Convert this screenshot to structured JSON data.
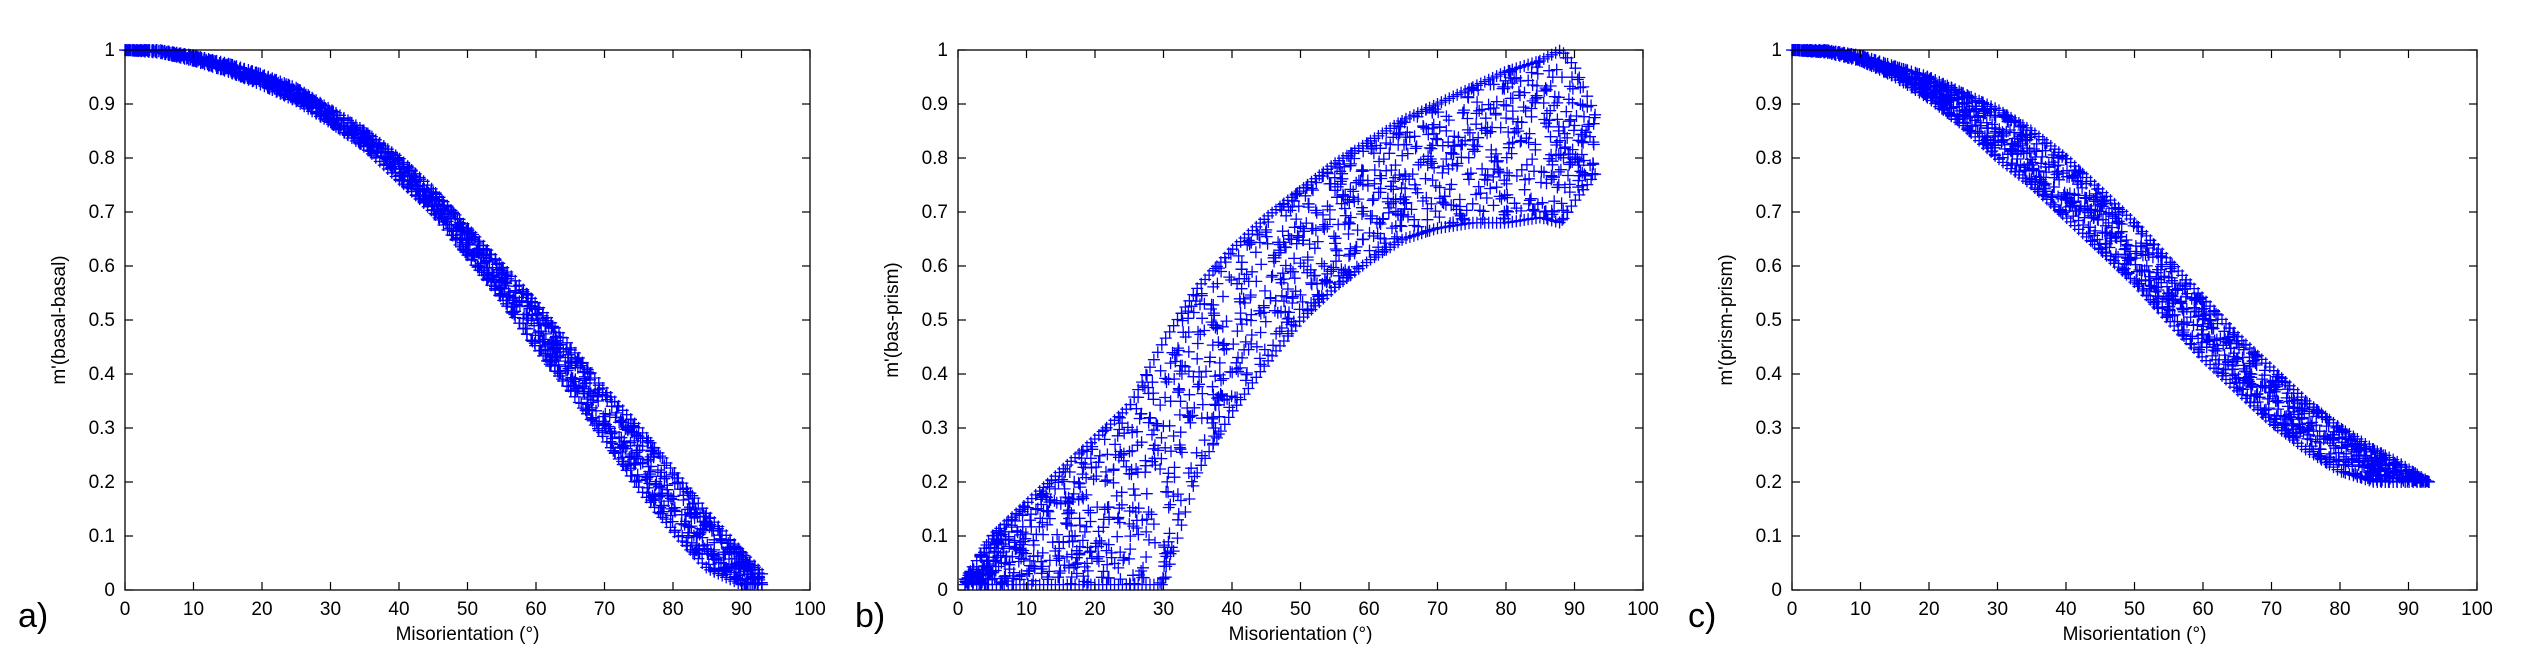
{
  "panel_labels": [
    "a)",
    "b)",
    "c)"
  ],
  "colors": {
    "marker": "#0000ff",
    "axis": "#000000",
    "background": "#ffffff"
  },
  "chart_data": [
    {
      "type": "scatter",
      "marker": "+",
      "title": "",
      "xlabel": "Misorientation (°)",
      "ylabel": "m'(basal-basal)",
      "xlim": [
        0,
        100
      ],
      "ylim": [
        0,
        1
      ],
      "xticks": [
        "0",
        "10",
        "20",
        "30",
        "40",
        "50",
        "60",
        "70",
        "80",
        "90",
        "100"
      ],
      "yticks": [
        "0",
        "0.1",
        "0.2",
        "0.3",
        "0.4",
        "0.5",
        "0.6",
        "0.7",
        "0.8",
        "0.9",
        "1"
      ],
      "grid": false,
      "data_extent": {
        "x": [
          0,
          5,
          10,
          15,
          20,
          25,
          30,
          35,
          40,
          45,
          50,
          55,
          60,
          65,
          70,
          75,
          80,
          85,
          90,
          93
        ],
        "y_upper": [
          1,
          1,
          0.99,
          0.975,
          0.955,
          0.93,
          0.89,
          0.85,
          0.8,
          0.74,
          0.67,
          0.6,
          0.53,
          0.45,
          0.37,
          0.3,
          0.22,
          0.14,
          0.07,
          0.03
        ],
        "y_lower": [
          1,
          0.995,
          0.98,
          0.96,
          0.935,
          0.905,
          0.865,
          0.82,
          0.76,
          0.7,
          0.62,
          0.54,
          0.45,
          0.37,
          0.28,
          0.19,
          0.11,
          0.04,
          0.01,
          0.01
        ]
      }
    },
    {
      "type": "scatter",
      "marker": "+",
      "title": "",
      "xlabel": "Misorientation (°)",
      "ylabel": "m'(bas-prism)",
      "xlim": [
        0,
        100
      ],
      "ylim": [
        0,
        1
      ],
      "xticks": [
        "0",
        "10",
        "20",
        "30",
        "40",
        "50",
        "60",
        "70",
        "80",
        "90",
        "100"
      ],
      "yticks": [
        "0",
        "0.1",
        "0.2",
        "0.3",
        "0.4",
        "0.5",
        "0.6",
        "0.7",
        "0.8",
        "0.9",
        "1"
      ],
      "grid": false,
      "data_extent": {
        "x": [
          1,
          5,
          10,
          15,
          20,
          25,
          30,
          35,
          40,
          45,
          50,
          55,
          60,
          65,
          70,
          75,
          80,
          85,
          88,
          90,
          93
        ],
        "y_upper": [
          0.02,
          0.1,
          0.16,
          0.22,
          0.28,
          0.34,
          0.46,
          0.56,
          0.63,
          0.69,
          0.74,
          0.79,
          0.83,
          0.87,
          0.9,
          0.93,
          0.96,
          0.98,
          1.0,
          0.97,
          0.88
        ],
        "y_lower": [
          0.01,
          0.01,
          0.01,
          0.01,
          0.01,
          0.01,
          0.01,
          0.22,
          0.33,
          0.42,
          0.5,
          0.56,
          0.61,
          0.65,
          0.67,
          0.68,
          0.68,
          0.69,
          0.68,
          0.72,
          0.77
        ]
      }
    },
    {
      "type": "scatter",
      "marker": "+",
      "title": "",
      "xlabel": "Misorientation (°)",
      "ylabel": "m'(prism-prism)",
      "xlim": [
        0,
        100
      ],
      "ylim": [
        0,
        1
      ],
      "xticks": [
        "0",
        "10",
        "20",
        "30",
        "40",
        "50",
        "60",
        "70",
        "80",
        "90",
        "100"
      ],
      "yticks": [
        "0",
        "0.1",
        "0.2",
        "0.3",
        "0.4",
        "0.5",
        "0.6",
        "0.7",
        "0.8",
        "0.9",
        "1"
      ],
      "grid": false,
      "data_extent": {
        "x": [
          0,
          5,
          10,
          15,
          20,
          25,
          30,
          35,
          40,
          45,
          50,
          55,
          60,
          65,
          70,
          75,
          80,
          85,
          88,
          93
        ],
        "y_upper": [
          1,
          1,
          0.99,
          0.97,
          0.95,
          0.92,
          0.89,
          0.85,
          0.8,
          0.74,
          0.68,
          0.61,
          0.54,
          0.47,
          0.41,
          0.35,
          0.3,
          0.26,
          0.24,
          0.2
        ],
        "y_lower": [
          1,
          0.995,
          0.98,
          0.95,
          0.91,
          0.86,
          0.8,
          0.75,
          0.69,
          0.63,
          0.57,
          0.5,
          0.43,
          0.37,
          0.31,
          0.26,
          0.22,
          0.2,
          0.2,
          0.2
        ]
      }
    }
  ]
}
